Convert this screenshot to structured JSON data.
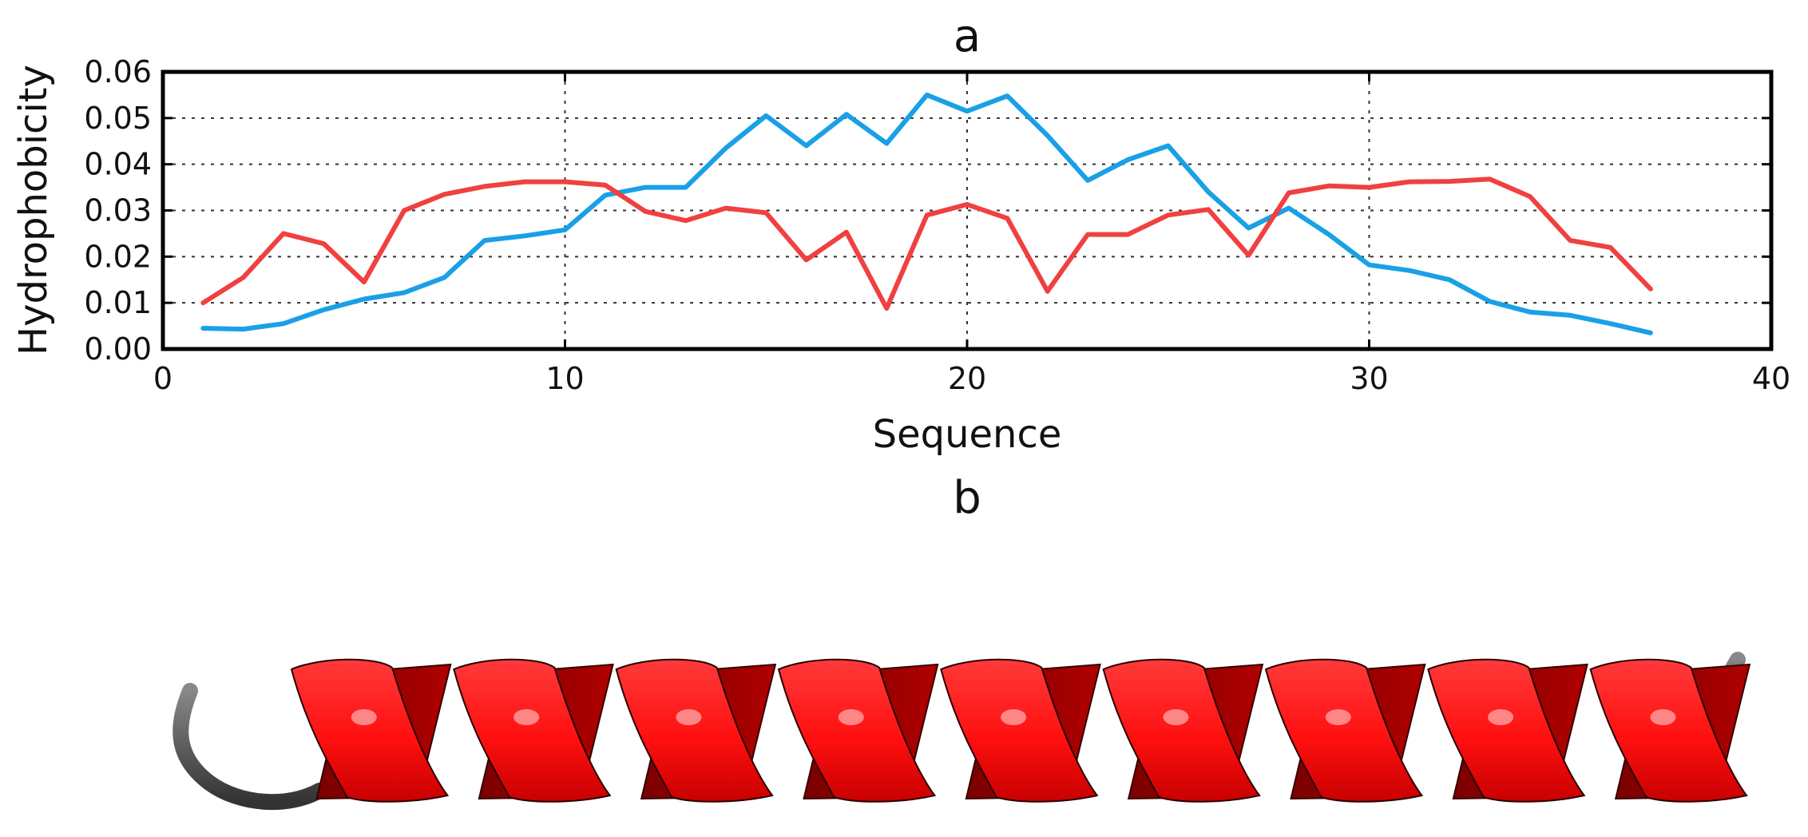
{
  "panel_a_label": "a",
  "panel_b_label": "b",
  "chart_data": {
    "type": "line",
    "title": "a",
    "xlabel": "Sequence",
    "ylabel": "Hydrophobicity",
    "xlim": [
      0,
      40
    ],
    "ylim": [
      0.0,
      0.06
    ],
    "xticks": [
      "0",
      "10",
      "20",
      "30",
      "40"
    ],
    "yticks": [
      "0.00",
      "0.01",
      "0.02",
      "0.03",
      "0.04",
      "0.05",
      "0.06"
    ],
    "grid": true,
    "x": [
      1,
      2,
      3,
      4,
      5,
      6,
      7,
      8,
      9,
      10,
      11,
      12,
      13,
      14,
      15,
      16,
      17,
      18,
      19,
      20,
      21,
      22,
      23,
      24,
      25,
      26,
      27,
      28,
      29,
      30,
      31,
      32,
      33,
      34,
      35,
      36,
      37
    ],
    "series": [
      {
        "color": "#19a0e6",
        "values": [
          0.0045,
          0.0043,
          0.0055,
          0.0085,
          0.0108,
          0.0122,
          0.0155,
          0.0235,
          0.0245,
          0.0258,
          0.0333,
          0.035,
          0.035,
          0.0435,
          0.0505,
          0.044,
          0.0508,
          0.0445,
          0.055,
          0.0515,
          0.0548,
          0.0462,
          0.0365,
          0.041,
          0.044,
          0.034,
          0.0262,
          0.0305,
          0.0248,
          0.0182,
          0.017,
          0.015,
          0.0103,
          0.008,
          0.0073,
          0.0055,
          0.0035
        ]
      },
      {
        "color": "#f04040",
        "values": [
          0.01,
          0.0155,
          0.025,
          0.0228,
          0.0145,
          0.03,
          0.0335,
          0.0352,
          0.0362,
          0.0362,
          0.0355,
          0.0298,
          0.0278,
          0.0305,
          0.0295,
          0.0193,
          0.0253,
          0.0088,
          0.029,
          0.0313,
          0.0283,
          0.0125,
          0.0248,
          0.0248,
          0.029,
          0.0302,
          0.0203,
          0.0338,
          0.0353,
          0.035,
          0.0362,
          0.0363,
          0.0368,
          0.033,
          0.0235,
          0.022,
          0.013
        ]
      }
    ]
  },
  "illustration": {
    "helix_color": "#ff1a1a",
    "helix_shadow_color": "#8a0000",
    "coil_color": "#555555",
    "turns": 9
  }
}
